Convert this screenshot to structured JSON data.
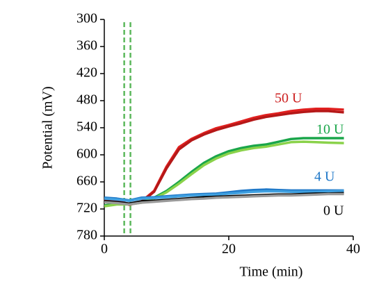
{
  "chart_data": {
    "type": "line",
    "x_label": "Time (min)",
    "y_label": "Potential (mV)",
    "xlim": [
      0,
      40
    ],
    "xticks": [
      0,
      20,
      40
    ],
    "ylim": [
      780,
      300
    ],
    "yticks": [
      300,
      360,
      420,
      480,
      540,
      600,
      660,
      720,
      780
    ],
    "x": [
      0,
      2,
      4,
      6,
      8,
      10,
      12,
      14,
      16,
      18,
      20,
      22,
      24,
      26,
      28,
      30,
      32,
      34,
      36,
      38.5
    ],
    "markers": {
      "x": [
        3.2,
        4.2
      ],
      "color": "#5cb85c"
    },
    "series": [
      {
        "name": "50 U",
        "color": "#cc1f1f",
        "colors": [
          "#e0201f",
          "#b51818"
        ],
        "runs": [
          [
            698,
            700,
            711,
            703,
            680,
            626,
            583,
            565,
            552,
            541,
            534,
            526,
            518,
            512,
            508,
            503,
            500,
            498,
            498,
            500
          ],
          [
            700,
            702,
            709,
            704,
            682,
            630,
            588,
            568,
            555,
            545,
            537,
            530,
            522,
            516,
            512,
            508,
            505,
            503,
            503,
            506
          ]
        ]
      },
      {
        "name": "10 U",
        "color": "#1aa64a",
        "colors": [
          "#1aa64a",
          "#8ad24a"
        ],
        "runs": [
          [
            712,
            708,
            709,
            705,
            695,
            680,
            660,
            638,
            618,
            603,
            592,
            585,
            580,
            577,
            571,
            565,
            563,
            563,
            563,
            563
          ],
          [
            714,
            710,
            710,
            706,
            697,
            683,
            664,
            643,
            623,
            608,
            597,
            590,
            585,
            582,
            577,
            572,
            571,
            572,
            573,
            574
          ]
        ]
      },
      {
        "name": "4 U",
        "color": "#1f78c8",
        "colors": [
          "#1f78c8",
          "#3fa0e0"
        ],
        "runs": [
          [
            695,
            697,
            701,
            695,
            694,
            692,
            690,
            688,
            687,
            686,
            683,
            680,
            678,
            677,
            678,
            679,
            679,
            679,
            679,
            679
          ],
          [
            697,
            699,
            702,
            697,
            696,
            694,
            692,
            690,
            689,
            688,
            686,
            684,
            682,
            681,
            681,
            682,
            682,
            682,
            681,
            680
          ]
        ]
      },
      {
        "name": "0 U",
        "color": "#000000",
        "colors": [
          "#000000",
          "#9a9a9a"
        ],
        "runs": [
          [
            703,
            705,
            708,
            703,
            702,
            700,
            698,
            696,
            694,
            693,
            692,
            691,
            690,
            689,
            688,
            688,
            687,
            686,
            686,
            685
          ],
          [
            705,
            707,
            710,
            706,
            704,
            702,
            700,
            698,
            697,
            695,
            694,
            693,
            692,
            691,
            690,
            690,
            689,
            688,
            687,
            687
          ]
        ]
      }
    ]
  }
}
